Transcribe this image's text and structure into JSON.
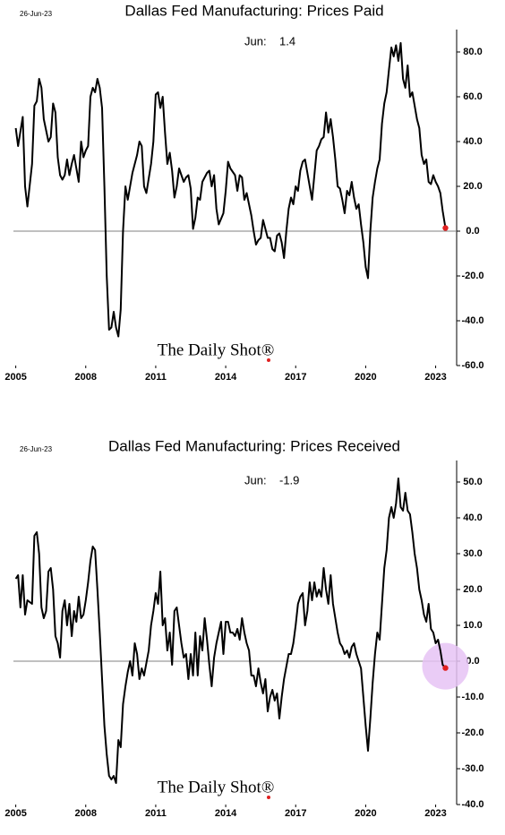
{
  "chart_data": [
    {
      "type": "line",
      "title": "Dallas Fed Manufacturing: Prices Paid",
      "date_note": "26-Jun-23",
      "annotation": {
        "label": "Jun:",
        "value": "1.4"
      },
      "watermark": "The Daily Shot®",
      "color": "#000000",
      "end_marker_color": "#e02020",
      "highlight": false,
      "xlim": [
        2004.9,
        2023.9
      ],
      "xticks": [
        2005,
        2008,
        2011,
        2014,
        2017,
        2020,
        2023
      ],
      "ylim": [
        -60,
        90
      ],
      "yticks": [
        {
          "value": -60,
          "label": "-60.0"
        },
        {
          "value": -40,
          "label": "-40.0"
        },
        {
          "value": -20,
          "label": "-20.0"
        },
        {
          "value": 0,
          "label": "0.0"
        },
        {
          "value": 20,
          "label": "20.0"
        },
        {
          "value": 40,
          "label": "40.0"
        },
        {
          "value": 60,
          "label": "60.0"
        },
        {
          "value": 80,
          "label": "80.0"
        }
      ],
      "x": [
        2005.0,
        2005.1,
        2005.3,
        2005.4,
        2005.5,
        2005.7,
        2005.8,
        2005.9,
        2006.0,
        2006.1,
        2006.2,
        2006.4,
        2006.5,
        2006.6,
        2006.7,
        2006.8,
        2006.9,
        2007.0,
        2007.1,
        2007.2,
        2007.3,
        2007.4,
        2007.5,
        2007.6,
        2007.7,
        2007.8,
        2007.9,
        2008.0,
        2008.1,
        2008.2,
        2008.3,
        2008.4,
        2008.5,
        2008.6,
        2008.7,
        2008.8,
        2008.9,
        2009.0,
        2009.1,
        2009.2,
        2009.3,
        2009.4,
        2009.5,
        2009.6,
        2009.7,
        2009.8,
        2009.9,
        2010.0,
        2010.2,
        2010.3,
        2010.4,
        2010.5,
        2010.6,
        2010.8,
        2010.9,
        2011.0,
        2011.1,
        2011.2,
        2011.3,
        2011.4,
        2011.5,
        2011.6,
        2011.7,
        2011.8,
        2011.9,
        2012.0,
        2012.2,
        2012.3,
        2012.4,
        2012.5,
        2012.6,
        2012.7,
        2012.8,
        2012.9,
        2013.0,
        2013.2,
        2013.3,
        2013.4,
        2013.5,
        2013.6,
        2013.7,
        2013.9,
        2014.0,
        2014.1,
        2014.2,
        2014.4,
        2014.5,
        2014.6,
        2014.7,
        2014.8,
        2014.9,
        2015.0,
        2015.1,
        2015.2,
        2015.3,
        2015.4,
        2015.5,
        2015.6,
        2015.7,
        2015.8,
        2015.9,
        2016.0,
        2016.1,
        2016.2,
        2016.3,
        2016.4,
        2016.5,
        2016.6,
        2016.7,
        2016.8,
        2016.9,
        2017.0,
        2017.1,
        2017.2,
        2017.3,
        2017.4,
        2017.5,
        2017.6,
        2017.7,
        2017.8,
        2017.9,
        2018.0,
        2018.1,
        2018.2,
        2018.3,
        2018.4,
        2018.5,
        2018.6,
        2018.7,
        2018.8,
        2018.9,
        2019.0,
        2019.1,
        2019.2,
        2019.3,
        2019.4,
        2019.5,
        2019.6,
        2019.7,
        2019.8,
        2019.9,
        2020.0,
        2020.1,
        2020.2,
        2020.3,
        2020.4,
        2020.5,
        2020.6,
        2020.7,
        2020.8,
        2020.9,
        2021.0,
        2021.1,
        2021.2,
        2021.3,
        2021.4,
        2021.5,
        2021.6,
        2021.7,
        2021.8,
        2021.9,
        2022.0,
        2022.2,
        2022.3,
        2022.4,
        2022.5,
        2022.6,
        2022.7,
        2022.8,
        2022.9,
        2023.0,
        2023.1,
        2023.2,
        2023.3,
        2023.42
      ],
      "values": [
        46,
        38,
        51,
        20,
        11,
        30,
        56,
        58,
        68,
        64,
        50,
        40,
        42,
        57,
        53,
        33,
        25,
        23,
        25,
        32,
        25,
        30,
        34,
        28,
        22,
        40,
        33,
        36,
        38,
        60,
        64,
        62,
        68,
        64,
        55,
        20,
        -20,
        -44,
        -43,
        -36,
        -43,
        -47,
        -35,
        0,
        20,
        14,
        20,
        26,
        34,
        40,
        38,
        20,
        17,
        30,
        40,
        61,
        62,
        55,
        60,
        44,
        30,
        35,
        27,
        15,
        20,
        28,
        22,
        24,
        25,
        19,
        1,
        6,
        15,
        14,
        22,
        26,
        27,
        20,
        25,
        10,
        3,
        8,
        18,
        31,
        28,
        25,
        18,
        25,
        24,
        14,
        17,
        12,
        7,
        0,
        -6,
        -4,
        -3,
        5,
        1,
        -3,
        -3,
        -8,
        -9,
        -2,
        -1,
        -5,
        -12,
        0,
        10,
        15,
        12,
        20,
        18,
        27,
        31,
        32,
        26,
        20,
        14,
        25,
        36,
        38,
        41,
        42,
        53,
        44,
        50,
        42,
        32,
        20,
        19,
        14,
        8,
        18,
        16,
        22,
        15,
        10,
        12,
        3,
        -5,
        -16,
        -21,
        0,
        15,
        22,
        28,
        32,
        48,
        57,
        62,
        72,
        82,
        78,
        83,
        76,
        84,
        68,
        64,
        74,
        60,
        62,
        50,
        46,
        34,
        30,
        32,
        22,
        21,
        25,
        22,
        20,
        17,
        9,
        1.4
      ]
    },
    {
      "type": "line",
      "title": "Dallas Fed Manufacturing: Prices Received",
      "date_note": "26-Jun-23",
      "annotation": {
        "label": "Jun:",
        "value": "-1.9"
      },
      "watermark": "The Daily Shot®",
      "color": "#000000",
      "end_marker_color": "#e02020",
      "highlight": true,
      "highlight_color": "#e6c3f5",
      "xlim": [
        2004.9,
        2023.9
      ],
      "xticks": [
        2005,
        2008,
        2011,
        2014,
        2017,
        2020,
        2023
      ],
      "ylim": [
        -40,
        56
      ],
      "yticks": [
        {
          "value": -40,
          "label": "-40.0"
        },
        {
          "value": -30,
          "label": "-30.0"
        },
        {
          "value": -20,
          "label": "-20.0"
        },
        {
          "value": -10,
          "label": "-10.0"
        },
        {
          "value": 0,
          "label": "0.0"
        },
        {
          "value": 10,
          "label": "10.0"
        },
        {
          "value": 20,
          "label": "20.0"
        },
        {
          "value": 30,
          "label": "30.0"
        },
        {
          "value": 40,
          "label": "40.0"
        },
        {
          "value": 50,
          "label": "50.0"
        }
      ],
      "x": [
        2005.0,
        2005.1,
        2005.2,
        2005.3,
        2005.4,
        2005.5,
        2005.7,
        2005.8,
        2005.9,
        2006.0,
        2006.1,
        2006.2,
        2006.3,
        2006.4,
        2006.5,
        2006.6,
        2006.7,
        2006.8,
        2006.9,
        2007.0,
        2007.1,
        2007.2,
        2007.3,
        2007.4,
        2007.5,
        2007.6,
        2007.7,
        2007.8,
        2007.9,
        2008.0,
        2008.1,
        2008.2,
        2008.3,
        2008.4,
        2008.5,
        2008.6,
        2008.7,
        2008.8,
        2008.9,
        2009.0,
        2009.1,
        2009.2,
        2009.3,
        2009.4,
        2009.5,
        2009.6,
        2009.7,
        2009.8,
        2009.9,
        2010.0,
        2010.1,
        2010.2,
        2010.3,
        2010.4,
        2010.5,
        2010.7,
        2010.8,
        2010.9,
        2011.0,
        2011.1,
        2011.2,
        2011.3,
        2011.4,
        2011.5,
        2011.6,
        2011.7,
        2011.8,
        2011.9,
        2012.0,
        2012.1,
        2012.2,
        2012.3,
        2012.4,
        2012.5,
        2012.6,
        2012.7,
        2012.8,
        2012.9,
        2013.0,
        2013.1,
        2013.2,
        2013.3,
        2013.4,
        2013.5,
        2013.6,
        2013.8,
        2013.9,
        2014.0,
        2014.1,
        2014.2,
        2014.3,
        2014.4,
        2014.5,
        2014.6,
        2014.7,
        2014.8,
        2014.9,
        2015.0,
        2015.1,
        2015.2,
        2015.3,
        2015.4,
        2015.5,
        2015.6,
        2015.7,
        2015.8,
        2015.9,
        2016.0,
        2016.1,
        2016.2,
        2016.3,
        2016.4,
        2016.5,
        2016.7,
        2016.8,
        2016.9,
        2017.0,
        2017.1,
        2017.2,
        2017.3,
        2017.4,
        2017.5,
        2017.6,
        2017.7,
        2017.8,
        2017.9,
        2018.0,
        2018.1,
        2018.2,
        2018.3,
        2018.4,
        2018.5,
        2018.6,
        2018.7,
        2018.8,
        2018.9,
        2019.0,
        2019.1,
        2019.2,
        2019.3,
        2019.4,
        2019.5,
        2019.6,
        2019.7,
        2019.8,
        2019.9,
        2020.0,
        2020.1,
        2020.2,
        2020.3,
        2020.4,
        2020.5,
        2020.6,
        2020.7,
        2020.8,
        2020.9,
        2021.0,
        2021.1,
        2021.2,
        2021.3,
        2021.4,
        2021.5,
        2021.6,
        2021.7,
        2021.8,
        2021.9,
        2022.0,
        2022.1,
        2022.2,
        2022.3,
        2022.4,
        2022.5,
        2022.6,
        2022.7,
        2022.8,
        2022.9,
        2023.0,
        2023.1,
        2023.2,
        2023.3,
        2023.42
      ],
      "values": [
        23,
        24,
        15,
        24,
        13,
        17,
        16,
        35,
        36,
        30,
        15,
        12,
        14,
        25,
        26,
        20,
        7,
        5,
        1,
        14,
        17,
        10,
        16,
        7,
        14,
        11,
        18,
        12,
        13,
        17,
        22,
        28,
        32,
        31,
        20,
        8,
        -5,
        -18,
        -26,
        -32,
        -33,
        -32,
        -34,
        -22,
        -24,
        -12,
        -7,
        -3,
        0,
        -4,
        5,
        2,
        -5,
        -2,
        -4,
        3,
        10,
        14,
        19,
        16,
        25,
        10,
        12,
        3,
        8,
        -1,
        14,
        15,
        10,
        5,
        1,
        2,
        -5,
        2,
        -4,
        8,
        -4,
        7,
        3,
        12,
        6,
        -1,
        -7,
        1,
        5,
        11,
        2,
        11,
        11,
        8,
        8,
        7,
        9,
        6,
        12,
        8,
        5,
        3,
        -4,
        -4,
        -7,
        -2,
        -6,
        -9,
        -5,
        -14,
        -10,
        -8,
        -11,
        -9,
        -16,
        -10,
        -5,
        2,
        2,
        5,
        10,
        16,
        18,
        19,
        10,
        14,
        22,
        17,
        22,
        18,
        20,
        18,
        26,
        20,
        16,
        24,
        16,
        12,
        8,
        5,
        4,
        2,
        3,
        1,
        4,
        5,
        2,
        0,
        -2,
        -10,
        -18,
        -25,
        -16,
        -6,
        2,
        8,
        6,
        16,
        26,
        31,
        40,
        43,
        40,
        44,
        51,
        43,
        42,
        47,
        42,
        41,
        36,
        30,
        26,
        20,
        17,
        13,
        11,
        16,
        9,
        8,
        5,
        6,
        3,
        -1,
        -1.9
      ]
    }
  ]
}
